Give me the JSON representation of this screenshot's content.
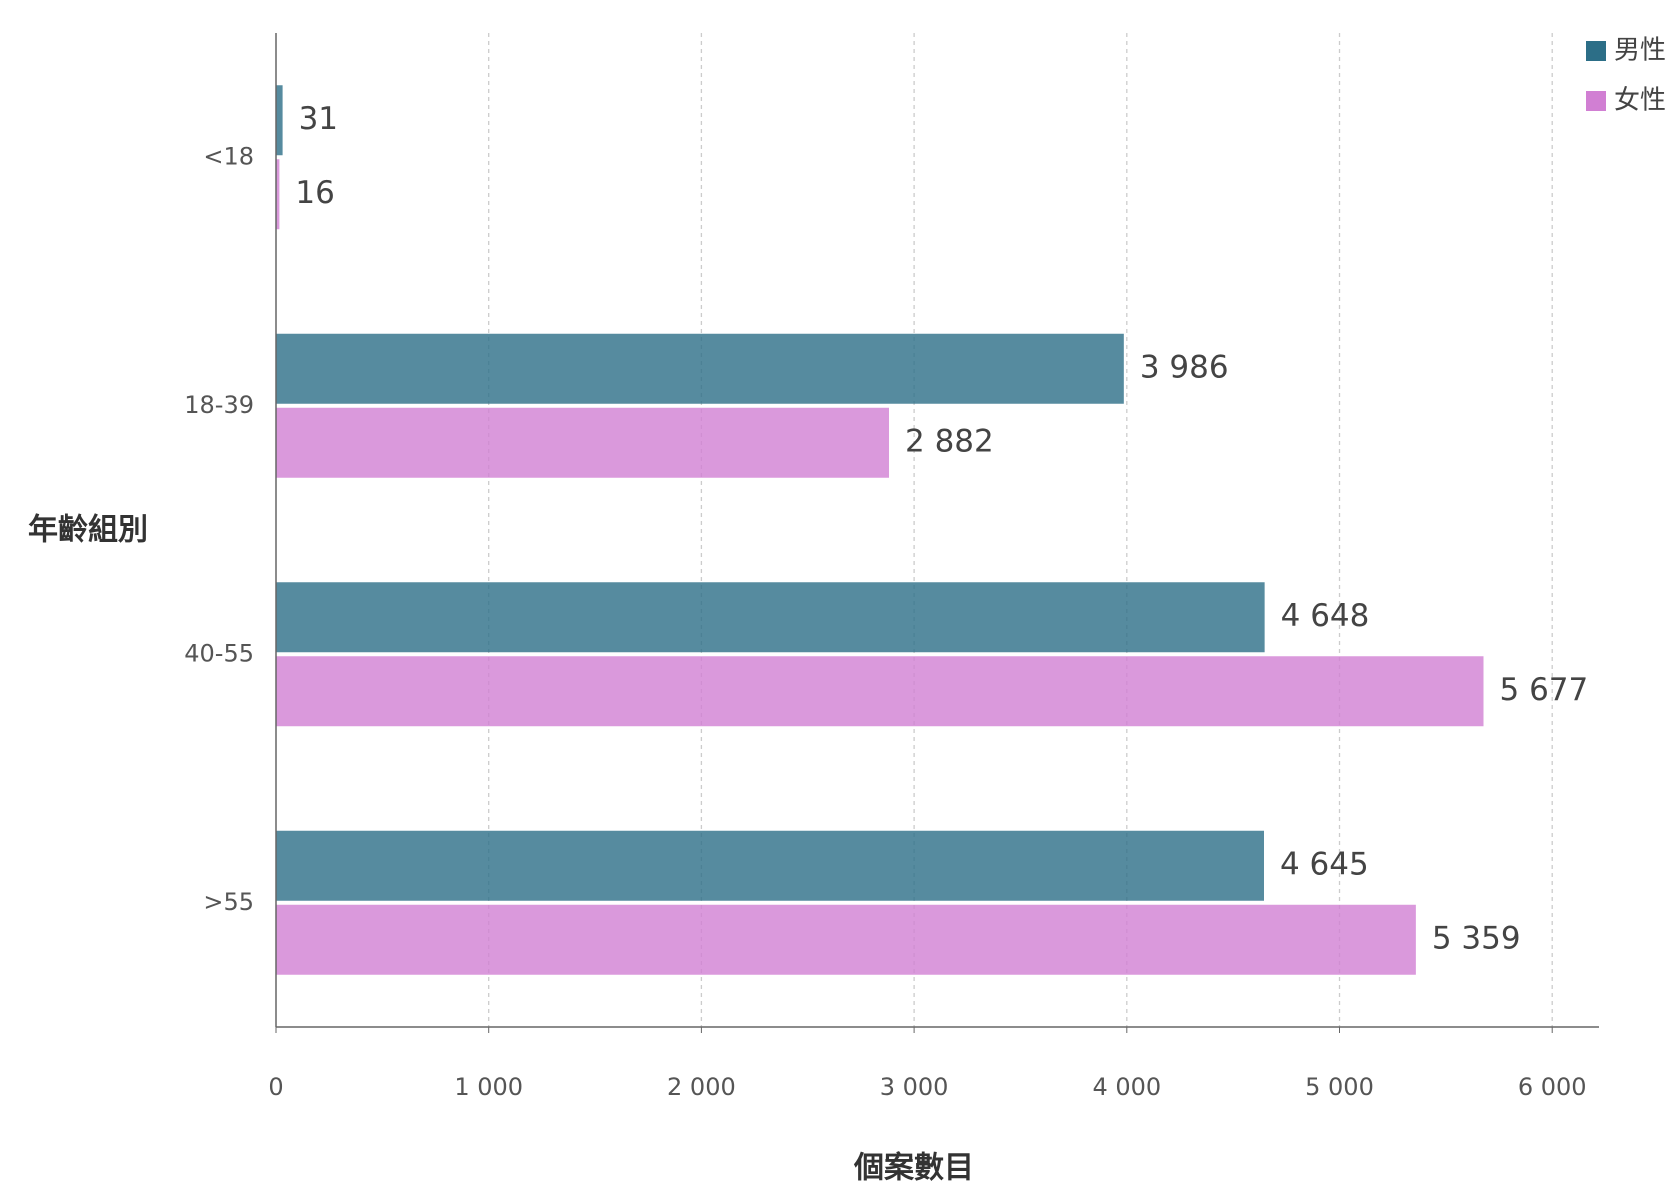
{
  "chart_data": {
    "type": "hbar",
    "x_label": "個案數目",
    "y_label": "年齡組別",
    "categories": [
      "<18",
      "18-39",
      "40-55",
      ">55"
    ],
    "series": [
      {
        "name": "男性",
        "color": "#2c6e87",
        "values": [
          31,
          3986,
          4648,
          4645
        ],
        "value_labels": [
          "31",
          "3 986",
          "4 648",
          "4 645"
        ]
      },
      {
        "name": "女性",
        "color": "#d17fd3",
        "values": [
          16,
          2882,
          5677,
          5359
        ],
        "value_labels": [
          "16",
          "2 882",
          "5 677",
          "5 359"
        ]
      }
    ],
    "xlim": [
      0,
      6220
    ],
    "xticks": [
      0,
      {
        "value": 1000,
        "label": "1 000"
      },
      {
        "value": 2000,
        "label": "2 000"
      },
      {
        "value": 3000,
        "label": "3 000"
      },
      {
        "value": 4000,
        "label": "4 000"
      },
      {
        "value": 5000,
        "label": "5 000"
      },
      {
        "value": 6000,
        "label": "6 000"
      }
    ],
    "grid": true,
    "legend": "top-right"
  }
}
